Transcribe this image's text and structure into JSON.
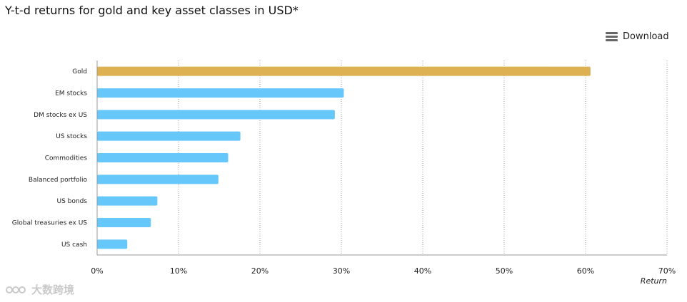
{
  "header": {
    "title": "Y-t-d returns for gold and key asset classes in USD*",
    "download_label": "Download"
  },
  "watermark": {
    "text": "大数跨境"
  },
  "chart_data": {
    "type": "bar",
    "orientation": "horizontal",
    "title": "Y-t-d returns for gold and key asset classes in USD*",
    "xlabel": "Return",
    "ylabel": "",
    "xlim": [
      0,
      70
    ],
    "xticks": [
      "0%",
      "10%",
      "20%",
      "30%",
      "40%",
      "50%",
      "60%",
      "70%"
    ],
    "grid": true,
    "categories": [
      "Gold",
      "EM stocks",
      "DM stocks ex US",
      "US stocks",
      "Commodities",
      "Balanced portfolio",
      "US bonds",
      "Global treasuries ex US",
      "US cash"
    ],
    "values": [
      60.6,
      30.3,
      29.2,
      17.6,
      16.1,
      14.9,
      7.4,
      6.6,
      3.7
    ],
    "colors": {
      "highlight": "#DDB052",
      "default": "#66C8FA",
      "axis": "#999999",
      "grid": "#9A9A9A"
    }
  }
}
